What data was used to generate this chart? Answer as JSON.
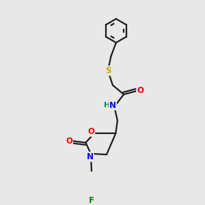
{
  "bg_color": "#e8e8e8",
  "bond_color": "#1a1a1a",
  "bond_width": 1.6,
  "atom_colors": {
    "O": "#ff0000",
    "N": "#0000ff",
    "S": "#ccaa00",
    "F": "#008800",
    "H": "#008888",
    "C": "#1a1a1a"
  },
  "font_size_atom": 8.5,
  "r_inner": 0.44,
  "benzene_r": 0.7
}
